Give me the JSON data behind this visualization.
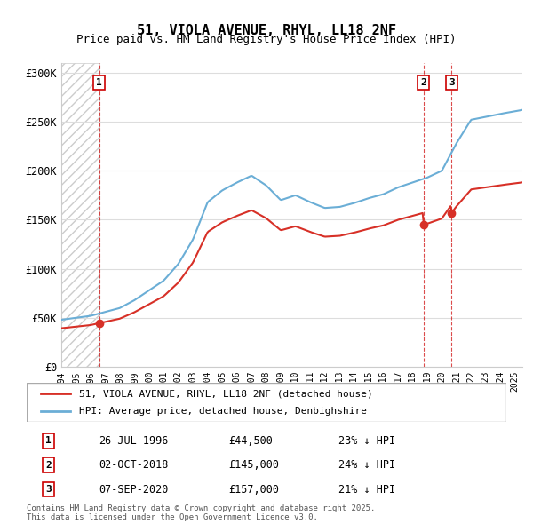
{
  "title_line1": "51, VIOLA AVENUE, RHYL, LL18 2NF",
  "title_line2": "Price paid vs. HM Land Registry's House Price Index (HPI)",
  "ylabel": "",
  "background_color": "#ffffff",
  "plot_bg_color": "#ffffff",
  "hpi_color": "#6baed6",
  "price_color": "#d73027",
  "hatching_color": "#cccccc",
  "grid_color": "#dddddd",
  "sale_markers": [
    {
      "date_idx": 2.58,
      "price": 44500,
      "label": "1",
      "date_str": "26-JUL-1996",
      "pct": "23% ↓ HPI"
    },
    {
      "date_idx": 24.75,
      "price": 145000,
      "label": "2",
      "date_str": "02-OCT-2018",
      "pct": "24% ↓ HPI"
    },
    {
      "date_idx": 26.67,
      "price": 157000,
      "label": "3",
      "date_str": "07-SEP-2020",
      "pct": "21% ↓ HPI"
    }
  ],
  "legend_entry1": "51, VIOLA AVENUE, RHYL, LL18 2NF (detached house)",
  "legend_entry2": "HPI: Average price, detached house, Denbighshire",
  "footnote": "Contains HM Land Registry data © Crown copyright and database right 2025.\nThis data is licensed under the Open Government Licence v3.0.",
  "ylim": [
    0,
    310000
  ],
  "yticks": [
    0,
    50000,
    100000,
    150000,
    200000,
    250000,
    300000
  ],
  "ytick_labels": [
    "£0",
    "£50K",
    "£100K",
    "£150K",
    "£200K",
    "£250K",
    "£300K"
  ],
  "x_start_year": 1994,
  "x_end_year": 2025
}
